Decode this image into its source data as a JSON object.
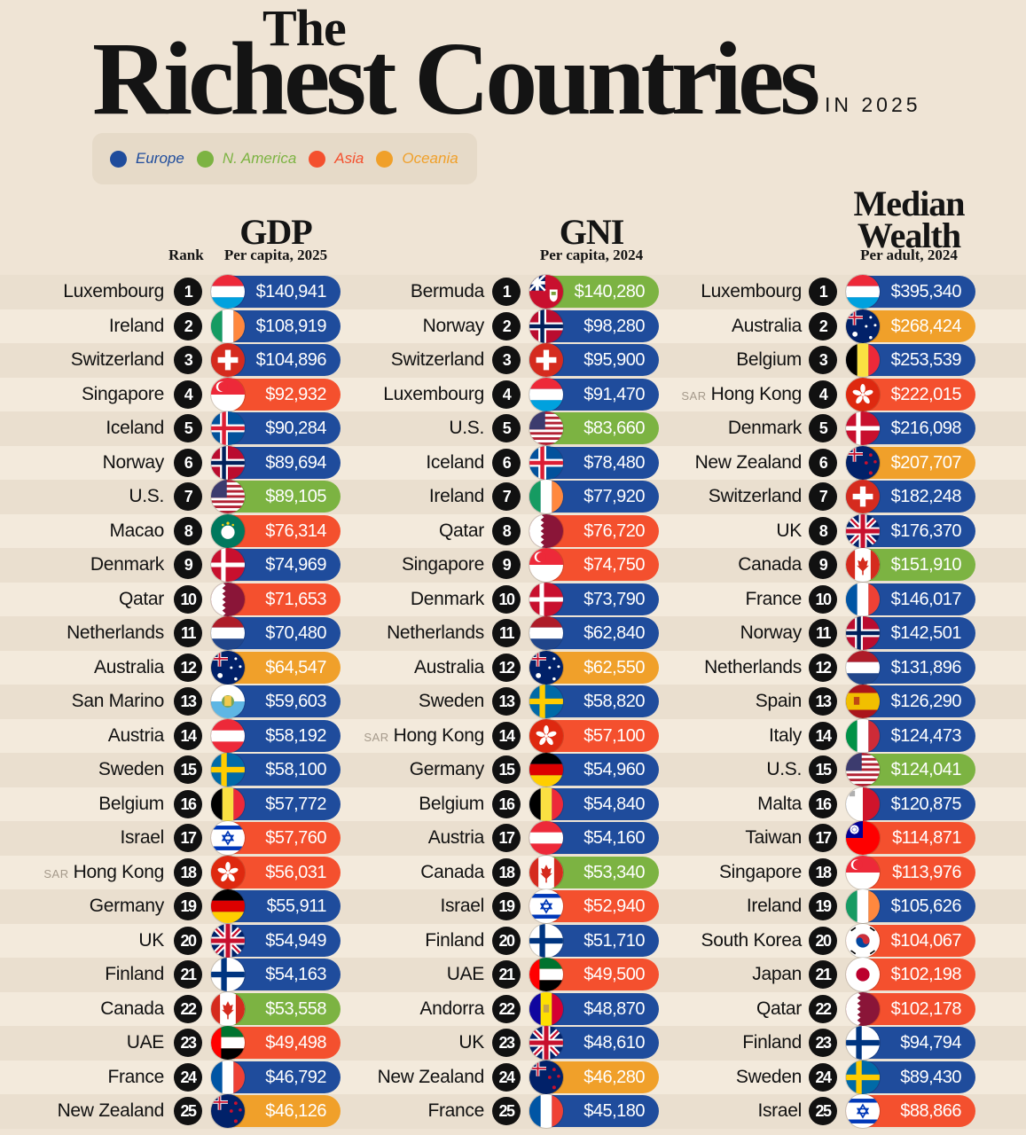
{
  "header": {
    "title_the": "The",
    "title_main": "Richest Countries",
    "title_year": "IN 2025"
  },
  "legend": [
    {
      "label": "Europe",
      "color": "#1f4c9c"
    },
    {
      "label": "N. America",
      "color": "#7cb342"
    },
    {
      "label": "Asia",
      "color": "#f4502e"
    },
    {
      "label": "Oceania",
      "color": "#f0a02a"
    }
  ],
  "rank_header": "Rank",
  "chart_data": [
    {
      "type": "table",
      "title": "GDP",
      "subtitle": "Per capita, 2025",
      "rows": [
        {
          "rank": "1",
          "country": "Luxembourg",
          "value": "$140,941",
          "region": "Europe",
          "flag": "luxembourg"
        },
        {
          "rank": "2",
          "country": "Ireland",
          "value": "$108,919",
          "region": "Europe",
          "flag": "ireland"
        },
        {
          "rank": "3",
          "country": "Switzerland",
          "value": "$104,896",
          "region": "Europe",
          "flag": "switzerland"
        },
        {
          "rank": "4",
          "country": "Singapore",
          "value": "$92,932",
          "region": "Asia",
          "flag": "singapore"
        },
        {
          "rank": "5",
          "country": "Iceland",
          "value": "$90,284",
          "region": "Europe",
          "flag": "iceland"
        },
        {
          "rank": "6",
          "country": "Norway",
          "value": "$89,694",
          "region": "Europe",
          "flag": "norway"
        },
        {
          "rank": "7",
          "country": "U.S.",
          "value": "$89,105",
          "region": "N. America",
          "flag": "us"
        },
        {
          "rank": "8",
          "country": "Macao",
          "value": "$76,314",
          "region": "Asia",
          "flag": "macao"
        },
        {
          "rank": "9",
          "country": "Denmark",
          "value": "$74,969",
          "region": "Europe",
          "flag": "denmark"
        },
        {
          "rank": "10",
          "country": "Qatar",
          "value": "$71,653",
          "region": "Asia",
          "flag": "qatar"
        },
        {
          "rank": "11",
          "country": "Netherlands",
          "value": "$70,480",
          "region": "Europe",
          "flag": "netherlands"
        },
        {
          "rank": "12",
          "country": "Australia",
          "value": "$64,547",
          "region": "Oceania",
          "flag": "australia"
        },
        {
          "rank": "13",
          "country": "San Marino",
          "value": "$59,603",
          "region": "Europe",
          "flag": "sanmarino"
        },
        {
          "rank": "14",
          "country": "Austria",
          "value": "$58,192",
          "region": "Europe",
          "flag": "austria"
        },
        {
          "rank": "15",
          "country": "Sweden",
          "value": "$58,100",
          "region": "Europe",
          "flag": "sweden"
        },
        {
          "rank": "16",
          "country": "Belgium",
          "value": "$57,772",
          "region": "Europe",
          "flag": "belgium"
        },
        {
          "rank": "17",
          "country": "Israel",
          "value": "$57,760",
          "region": "Asia",
          "flag": "israel"
        },
        {
          "rank": "18",
          "prefix": "SAR",
          "country": "Hong Kong",
          "value": "$56,031",
          "region": "Asia",
          "flag": "hongkong"
        },
        {
          "rank": "19",
          "country": "Germany",
          "value": "$55,911",
          "region": "Europe",
          "flag": "germany"
        },
        {
          "rank": "20",
          "country": "UK",
          "value": "$54,949",
          "region": "Europe",
          "flag": "uk"
        },
        {
          "rank": "21",
          "country": "Finland",
          "value": "$54,163",
          "region": "Europe",
          "flag": "finland"
        },
        {
          "rank": "22",
          "country": "Canada",
          "value": "$53,558",
          "region": "N. America",
          "flag": "canada"
        },
        {
          "rank": "23",
          "country": "UAE",
          "value": "$49,498",
          "region": "Asia",
          "flag": "uae"
        },
        {
          "rank": "24",
          "country": "France",
          "value": "$46,792",
          "region": "Europe",
          "flag": "france"
        },
        {
          "rank": "25",
          "country": "New Zealand",
          "value": "$46,126",
          "region": "Oceania",
          "flag": "newzealand"
        }
      ]
    },
    {
      "type": "table",
      "title": "GNI",
      "subtitle": "Per capita, 2024",
      "rows": [
        {
          "rank": "1",
          "country": "Bermuda",
          "value": "$140,280",
          "region": "N. America",
          "flag": "bermuda"
        },
        {
          "rank": "2",
          "country": "Norway",
          "value": "$98,280",
          "region": "Europe",
          "flag": "norway"
        },
        {
          "rank": "3",
          "country": "Switzerland",
          "value": "$95,900",
          "region": "Europe",
          "flag": "switzerland"
        },
        {
          "rank": "4",
          "country": "Luxembourg",
          "value": "$91,470",
          "region": "Europe",
          "flag": "luxembourg"
        },
        {
          "rank": "5",
          "country": "U.S.",
          "value": "$83,660",
          "region": "N. America",
          "flag": "us"
        },
        {
          "rank": "6",
          "country": "Iceland",
          "value": "$78,480",
          "region": "Europe",
          "flag": "iceland"
        },
        {
          "rank": "7",
          "country": "Ireland",
          "value": "$77,920",
          "region": "Europe",
          "flag": "ireland"
        },
        {
          "rank": "8",
          "country": "Qatar",
          "value": "$76,720",
          "region": "Asia",
          "flag": "qatar"
        },
        {
          "rank": "9",
          "country": "Singapore",
          "value": "$74,750",
          "region": "Asia",
          "flag": "singapore"
        },
        {
          "rank": "10",
          "country": "Denmark",
          "value": "$73,790",
          "region": "Europe",
          "flag": "denmark"
        },
        {
          "rank": "11",
          "country": "Netherlands",
          "value": "$62,840",
          "region": "Europe",
          "flag": "netherlands"
        },
        {
          "rank": "12",
          "country": "Australia",
          "value": "$62,550",
          "region": "Oceania",
          "flag": "australia"
        },
        {
          "rank": "13",
          "country": "Sweden",
          "value": "$58,820",
          "region": "Europe",
          "flag": "sweden"
        },
        {
          "rank": "14",
          "prefix": "SAR",
          "country": "Hong Kong",
          "value": "$57,100",
          "region": "Asia",
          "flag": "hongkong"
        },
        {
          "rank": "15",
          "country": "Germany",
          "value": "$54,960",
          "region": "Europe",
          "flag": "germany"
        },
        {
          "rank": "16",
          "country": "Belgium",
          "value": "$54,840",
          "region": "Europe",
          "flag": "belgium"
        },
        {
          "rank": "17",
          "country": "Austria",
          "value": "$54,160",
          "region": "Europe",
          "flag": "austria"
        },
        {
          "rank": "18",
          "country": "Canada",
          "value": "$53,340",
          "region": "N. America",
          "flag": "canada"
        },
        {
          "rank": "19",
          "country": "Israel",
          "value": "$52,940",
          "region": "Asia",
          "flag": "israel"
        },
        {
          "rank": "20",
          "country": "Finland",
          "value": "$51,710",
          "region": "Europe",
          "flag": "finland"
        },
        {
          "rank": "21",
          "country": "UAE",
          "value": "$49,500",
          "region": "Asia",
          "flag": "uae"
        },
        {
          "rank": "22",
          "country": "Andorra",
          "value": "$48,870",
          "region": "Europe",
          "flag": "andorra"
        },
        {
          "rank": "23",
          "country": "UK",
          "value": "$48,610",
          "region": "Europe",
          "flag": "uk"
        },
        {
          "rank": "24",
          "country": "New Zealand",
          "value": "$46,280",
          "region": "Oceania",
          "flag": "newzealand"
        },
        {
          "rank": "25",
          "country": "France",
          "value": "$45,180",
          "region": "Europe",
          "flag": "france"
        }
      ]
    },
    {
      "type": "table",
      "title": "Median Wealth",
      "subtitle": "Per adult, 2024",
      "rows": [
        {
          "rank": "1",
          "country": "Luxembourg",
          "value": "$395,340",
          "region": "Europe",
          "flag": "luxembourg"
        },
        {
          "rank": "2",
          "country": "Australia",
          "value": "$268,424",
          "region": "Oceania",
          "flag": "australia"
        },
        {
          "rank": "3",
          "country": "Belgium",
          "value": "$253,539",
          "region": "Europe",
          "flag": "belgium"
        },
        {
          "rank": "4",
          "prefix": "SAR",
          "country": "Hong Kong",
          "value": "$222,015",
          "region": "Asia",
          "flag": "hongkong"
        },
        {
          "rank": "5",
          "country": "Denmark",
          "value": "$216,098",
          "region": "Europe",
          "flag": "denmark"
        },
        {
          "rank": "6",
          "country": "New Zealand",
          "value": "$207,707",
          "region": "Oceania",
          "flag": "newzealand"
        },
        {
          "rank": "7",
          "country": "Switzerland",
          "value": "$182,248",
          "region": "Europe",
          "flag": "switzerland"
        },
        {
          "rank": "8",
          "country": "UK",
          "value": "$176,370",
          "region": "Europe",
          "flag": "uk"
        },
        {
          "rank": "9",
          "country": "Canada",
          "value": "$151,910",
          "region": "N. America",
          "flag": "canada"
        },
        {
          "rank": "10",
          "country": "France",
          "value": "$146,017",
          "region": "Europe",
          "flag": "france"
        },
        {
          "rank": "11",
          "country": "Norway",
          "value": "$142,501",
          "region": "Europe",
          "flag": "norway"
        },
        {
          "rank": "12",
          "country": "Netherlands",
          "value": "$131,896",
          "region": "Europe",
          "flag": "netherlands"
        },
        {
          "rank": "13",
          "country": "Spain",
          "value": "$126,290",
          "region": "Europe",
          "flag": "spain"
        },
        {
          "rank": "14",
          "country": "Italy",
          "value": "$124,473",
          "region": "Europe",
          "flag": "italy"
        },
        {
          "rank": "15",
          "country": "U.S.",
          "value": "$124,041",
          "region": "N. America",
          "flag": "us"
        },
        {
          "rank": "16",
          "country": "Malta",
          "value": "$120,875",
          "region": "Europe",
          "flag": "malta"
        },
        {
          "rank": "17",
          "country": "Taiwan",
          "value": "$114,871",
          "region": "Asia",
          "flag": "taiwan"
        },
        {
          "rank": "18",
          "country": "Singapore",
          "value": "$113,976",
          "region": "Asia",
          "flag": "singapore"
        },
        {
          "rank": "19",
          "country": "Ireland",
          "value": "$105,626",
          "region": "Europe",
          "flag": "ireland"
        },
        {
          "rank": "20",
          "country": "South Korea",
          "value": "$104,067",
          "region": "Asia",
          "flag": "southkorea"
        },
        {
          "rank": "21",
          "country": "Japan",
          "value": "$102,198",
          "region": "Asia",
          "flag": "japan"
        },
        {
          "rank": "22",
          "country": "Qatar",
          "value": "$102,178",
          "region": "Asia",
          "flag": "qatar"
        },
        {
          "rank": "23",
          "country": "Finland",
          "value": "$94,794",
          "region": "Europe",
          "flag": "finland"
        },
        {
          "rank": "24",
          "country": "Sweden",
          "value": "$89,430",
          "region": "Europe",
          "flag": "sweden"
        },
        {
          "rank": "25",
          "country": "Israel",
          "value": "$88,866",
          "region": "Asia",
          "flag": "israel"
        }
      ]
    }
  ]
}
